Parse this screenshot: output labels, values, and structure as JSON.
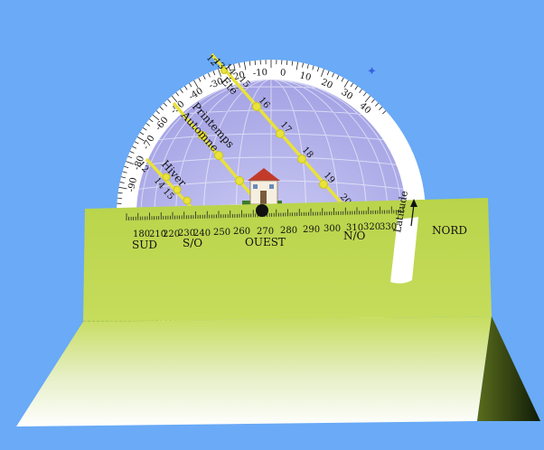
{
  "dial": {
    "angle_labels": [
      "-90",
      "-80",
      "-70",
      "-60",
      "-50",
      "-40",
      "-30",
      "-20",
      "-10",
      "0",
      "10",
      "20",
      "30",
      "40"
    ],
    "star": "✦"
  },
  "seasons": [
    {
      "name": "Été",
      "hours": [
        "12",
        "13",
        "14",
        "15",
        "16",
        "17",
        "18",
        "19",
        "20"
      ]
    },
    {
      "name": "Printemps",
      "hours": []
    },
    {
      "name": "Automne",
      "hours": []
    },
    {
      "name": "Hiver",
      "hours": [
        "12",
        "14",
        "15"
      ]
    }
  ],
  "ruler": {
    "numbers": [
      "180",
      "210",
      "220",
      "230",
      "240",
      "250",
      "260",
      "270",
      "280",
      "290",
      "300",
      "310",
      "320",
      "330",
      "0"
    ],
    "directions": {
      "south": "SUD",
      "southwest": "S/O",
      "west": "OUEST",
      "northwest": "N/O",
      "north": "NORD"
    }
  },
  "latitude_label": "Latitude",
  "colors": {
    "background": "#6aaaf6",
    "dial_disc": "#b8b8ee",
    "season_line": "#e9e23a",
    "panel": "#b9d44a",
    "base_dark": "#0f1a08"
  }
}
